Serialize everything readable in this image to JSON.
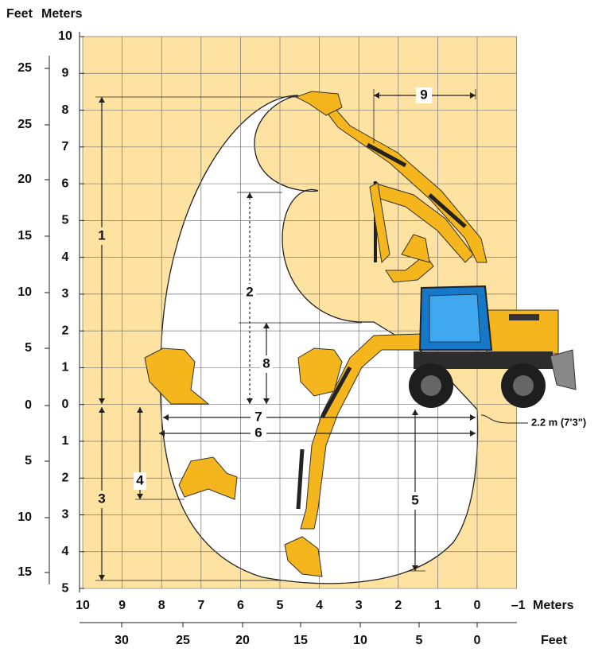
{
  "header": {
    "feet": "Feet",
    "meters": "Meters"
  },
  "left_axis": {
    "meters": [
      10,
      9,
      8,
      7,
      6,
      5,
      4,
      3,
      2,
      1,
      0,
      1,
      2,
      3,
      4,
      5
    ],
    "feet": [
      25,
      25,
      20,
      15,
      10,
      5,
      0,
      5,
      10,
      15
    ]
  },
  "bottom_axis": {
    "meters": [
      10,
      9,
      8,
      7,
      6,
      5,
      4,
      3,
      2,
      1,
      0,
      "–1"
    ],
    "meters_unit": "Meters",
    "feet": [
      30,
      25,
      20,
      15,
      10,
      5,
      0
    ],
    "feet_unit": "Feet"
  },
  "dimensions": [
    "1",
    "2",
    "3",
    "4",
    "5",
    "6",
    "7",
    "8",
    "9"
  ],
  "clearance_note": "2.2 m (7'3\")"
}
